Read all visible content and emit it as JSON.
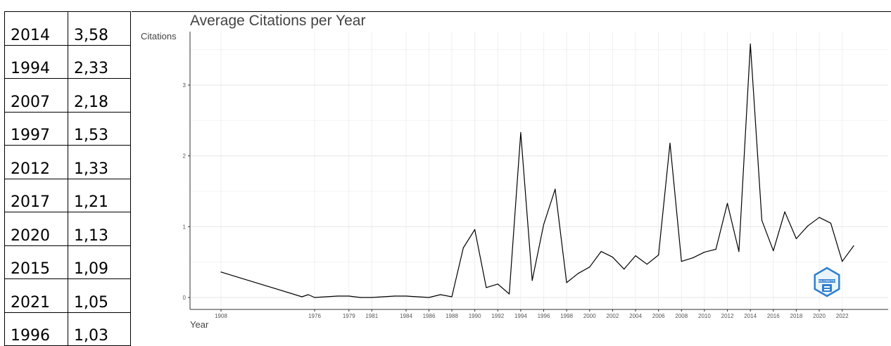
{
  "table": {
    "rows": [
      {
        "year": "2014",
        "value": "3,58"
      },
      {
        "year": "1994",
        "value": "2,33"
      },
      {
        "year": "2007",
        "value": "2,18"
      },
      {
        "year": "1997",
        "value": "1,53"
      },
      {
        "year": "2012",
        "value": "1,33"
      },
      {
        "year": "2017",
        "value": "1,21"
      },
      {
        "year": "2020",
        "value": "1,13"
      },
      {
        "year": "2015",
        "value": "1,09"
      },
      {
        "year": "2021",
        "value": "1,05"
      },
      {
        "year": "1996",
        "value": "1,03"
      }
    ]
  },
  "chart_data": {
    "type": "line",
    "title": "Average Citations per Year",
    "xlabel": "Year",
    "ylabel": "Citations",
    "x_ticks": [
      1908,
      1976,
      1979,
      1981,
      1984,
      1986,
      1988,
      1990,
      1992,
      1994,
      1996,
      1998,
      2000,
      2002,
      2004,
      2006,
      2008,
      2010,
      2012,
      2014,
      2016,
      2018,
      2020,
      2022
    ],
    "y_ticks": [
      0,
      1,
      2,
      3
    ],
    "ylim": [
      -0.1,
      3.7
    ],
    "grid": true,
    "legend": "none",
    "line_color": "#000000",
    "series": [
      {
        "x": [
          1908,
          1974,
          1975,
          1976,
          1977,
          1978,
          1979,
          1980,
          1981,
          1982,
          1983,
          1984,
          1985,
          1986,
          1987,
          1988,
          1989,
          1990,
          1991,
          1992,
          1993,
          1994,
          1995,
          1996,
          1997,
          1998,
          1999,
          2000,
          2001,
          2002,
          2003,
          2004,
          2005,
          2006,
          2007,
          2008,
          2009,
          2010,
          2011,
          2012,
          2013,
          2014,
          2015,
          2016,
          2017,
          2018,
          2019,
          2020,
          2021,
          2022,
          2023
        ],
        "values": [
          0.36,
          0.01,
          0.04,
          0.0,
          0.01,
          0.02,
          0.02,
          0.0,
          0.0,
          0.01,
          0.02,
          0.02,
          0.01,
          0.0,
          0.04,
          0.01,
          0.7,
          0.96,
          0.14,
          0.19,
          0.05,
          2.33,
          0.24,
          1.03,
          1.53,
          0.21,
          0.34,
          0.43,
          0.65,
          0.57,
          0.4,
          0.59,
          0.47,
          0.6,
          2.18,
          0.51,
          0.56,
          0.64,
          0.68,
          1.33,
          0.65,
          3.58,
          1.09,
          0.66,
          1.21,
          0.83,
          1.01,
          1.13,
          1.05,
          0.51,
          0.73
        ]
      }
    ]
  },
  "logo": {
    "icon": "bibliometrix-hexagon-logo",
    "text": "BIBLIOMETRIX",
    "color": "#2f7fd0"
  }
}
